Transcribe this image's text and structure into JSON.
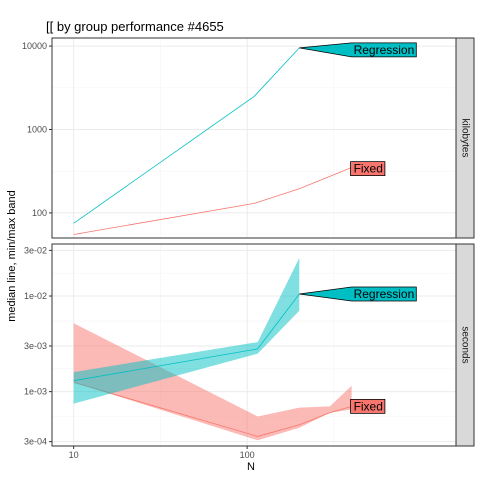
{
  "chart_data": {
    "type": "line",
    "title": "[[ by group performance #4655",
    "xlabel": "N",
    "ylabel": "median line, min/max band",
    "x_scale": "log10",
    "x_lim": [
      7.5,
      1600
    ],
    "x_ticks": [
      {
        "value": 10,
        "label": "10"
      },
      {
        "value": 100,
        "label": "100"
      }
    ],
    "grid": true,
    "legend": "none",
    "colors": {
      "Fixed": "#F8766D",
      "Regression": "#00BFC4"
    },
    "panels": [
      {
        "strip": "kilobytes",
        "y_scale": "log10",
        "y_lim": [
          50,
          12500
        ],
        "y_ticks": [
          {
            "value": 100,
            "label": "100"
          },
          {
            "value": 1000,
            "label": "1000"
          },
          {
            "value": 10000,
            "label": "10000"
          }
        ],
        "series": [
          {
            "name": "Regression",
            "x": [
              10,
              110,
              200
            ],
            "median": [
              75,
              2500,
              9500
            ],
            "min": [
              75,
              2500,
              9500
            ],
            "max": [
              75,
              2500,
              9500
            ]
          },
          {
            "name": "Fixed",
            "x": [
              10,
              110,
              200,
              400
            ],
            "median": [
              55,
              130,
              195,
              350
            ],
            "min": [
              55,
              130,
              195,
              350
            ],
            "max": [
              55,
              130,
              195,
              350
            ]
          }
        ],
        "annotations": [
          {
            "text": "Regression",
            "series": "Regression",
            "x": 400,
            "y": 9000
          },
          {
            "text": "Fixed",
            "series": "Fixed",
            "x": 400,
            "y": 340
          }
        ]
      },
      {
        "strip": "seconds",
        "y_scale": "log10",
        "y_lim": [
          0.00027,
          0.035
        ],
        "y_ticks": [
          {
            "value": 0.0003,
            "label": "3e-04"
          },
          {
            "value": 0.001,
            "label": "1e-03"
          },
          {
            "value": 0.003,
            "label": "3e-03"
          },
          {
            "value": 0.01,
            "label": "1e-02"
          },
          {
            "value": 0.03,
            "label": "3e-02"
          }
        ],
        "series": [
          {
            "name": "Fixed",
            "x": [
              10,
              115,
              200,
              300,
              400
            ],
            "median": [
              0.00125,
              0.00034,
              0.00045,
              0.0006,
              0.0007
            ],
            "min": [
              0.00125,
              0.00031,
              0.00042,
              0.0006,
              0.00065
            ],
            "max": [
              0.0052,
              0.00055,
              0.00068,
              0.0007,
              0.00115
            ]
          },
          {
            "name": "Regression",
            "x": [
              10,
              115,
              200
            ],
            "median": [
              0.0013,
              0.0028,
              0.0105
            ],
            "min": [
              0.00075,
              0.0025,
              0.007
            ],
            "max": [
              0.0016,
              0.0033,
              0.025
            ]
          }
        ],
        "annotations": [
          {
            "text": "Regression",
            "series": "Regression",
            "x": 400,
            "y": 0.0105
          },
          {
            "text": "Fixed",
            "series": "Fixed",
            "x": 400,
            "y": 0.0007
          }
        ]
      }
    ]
  }
}
